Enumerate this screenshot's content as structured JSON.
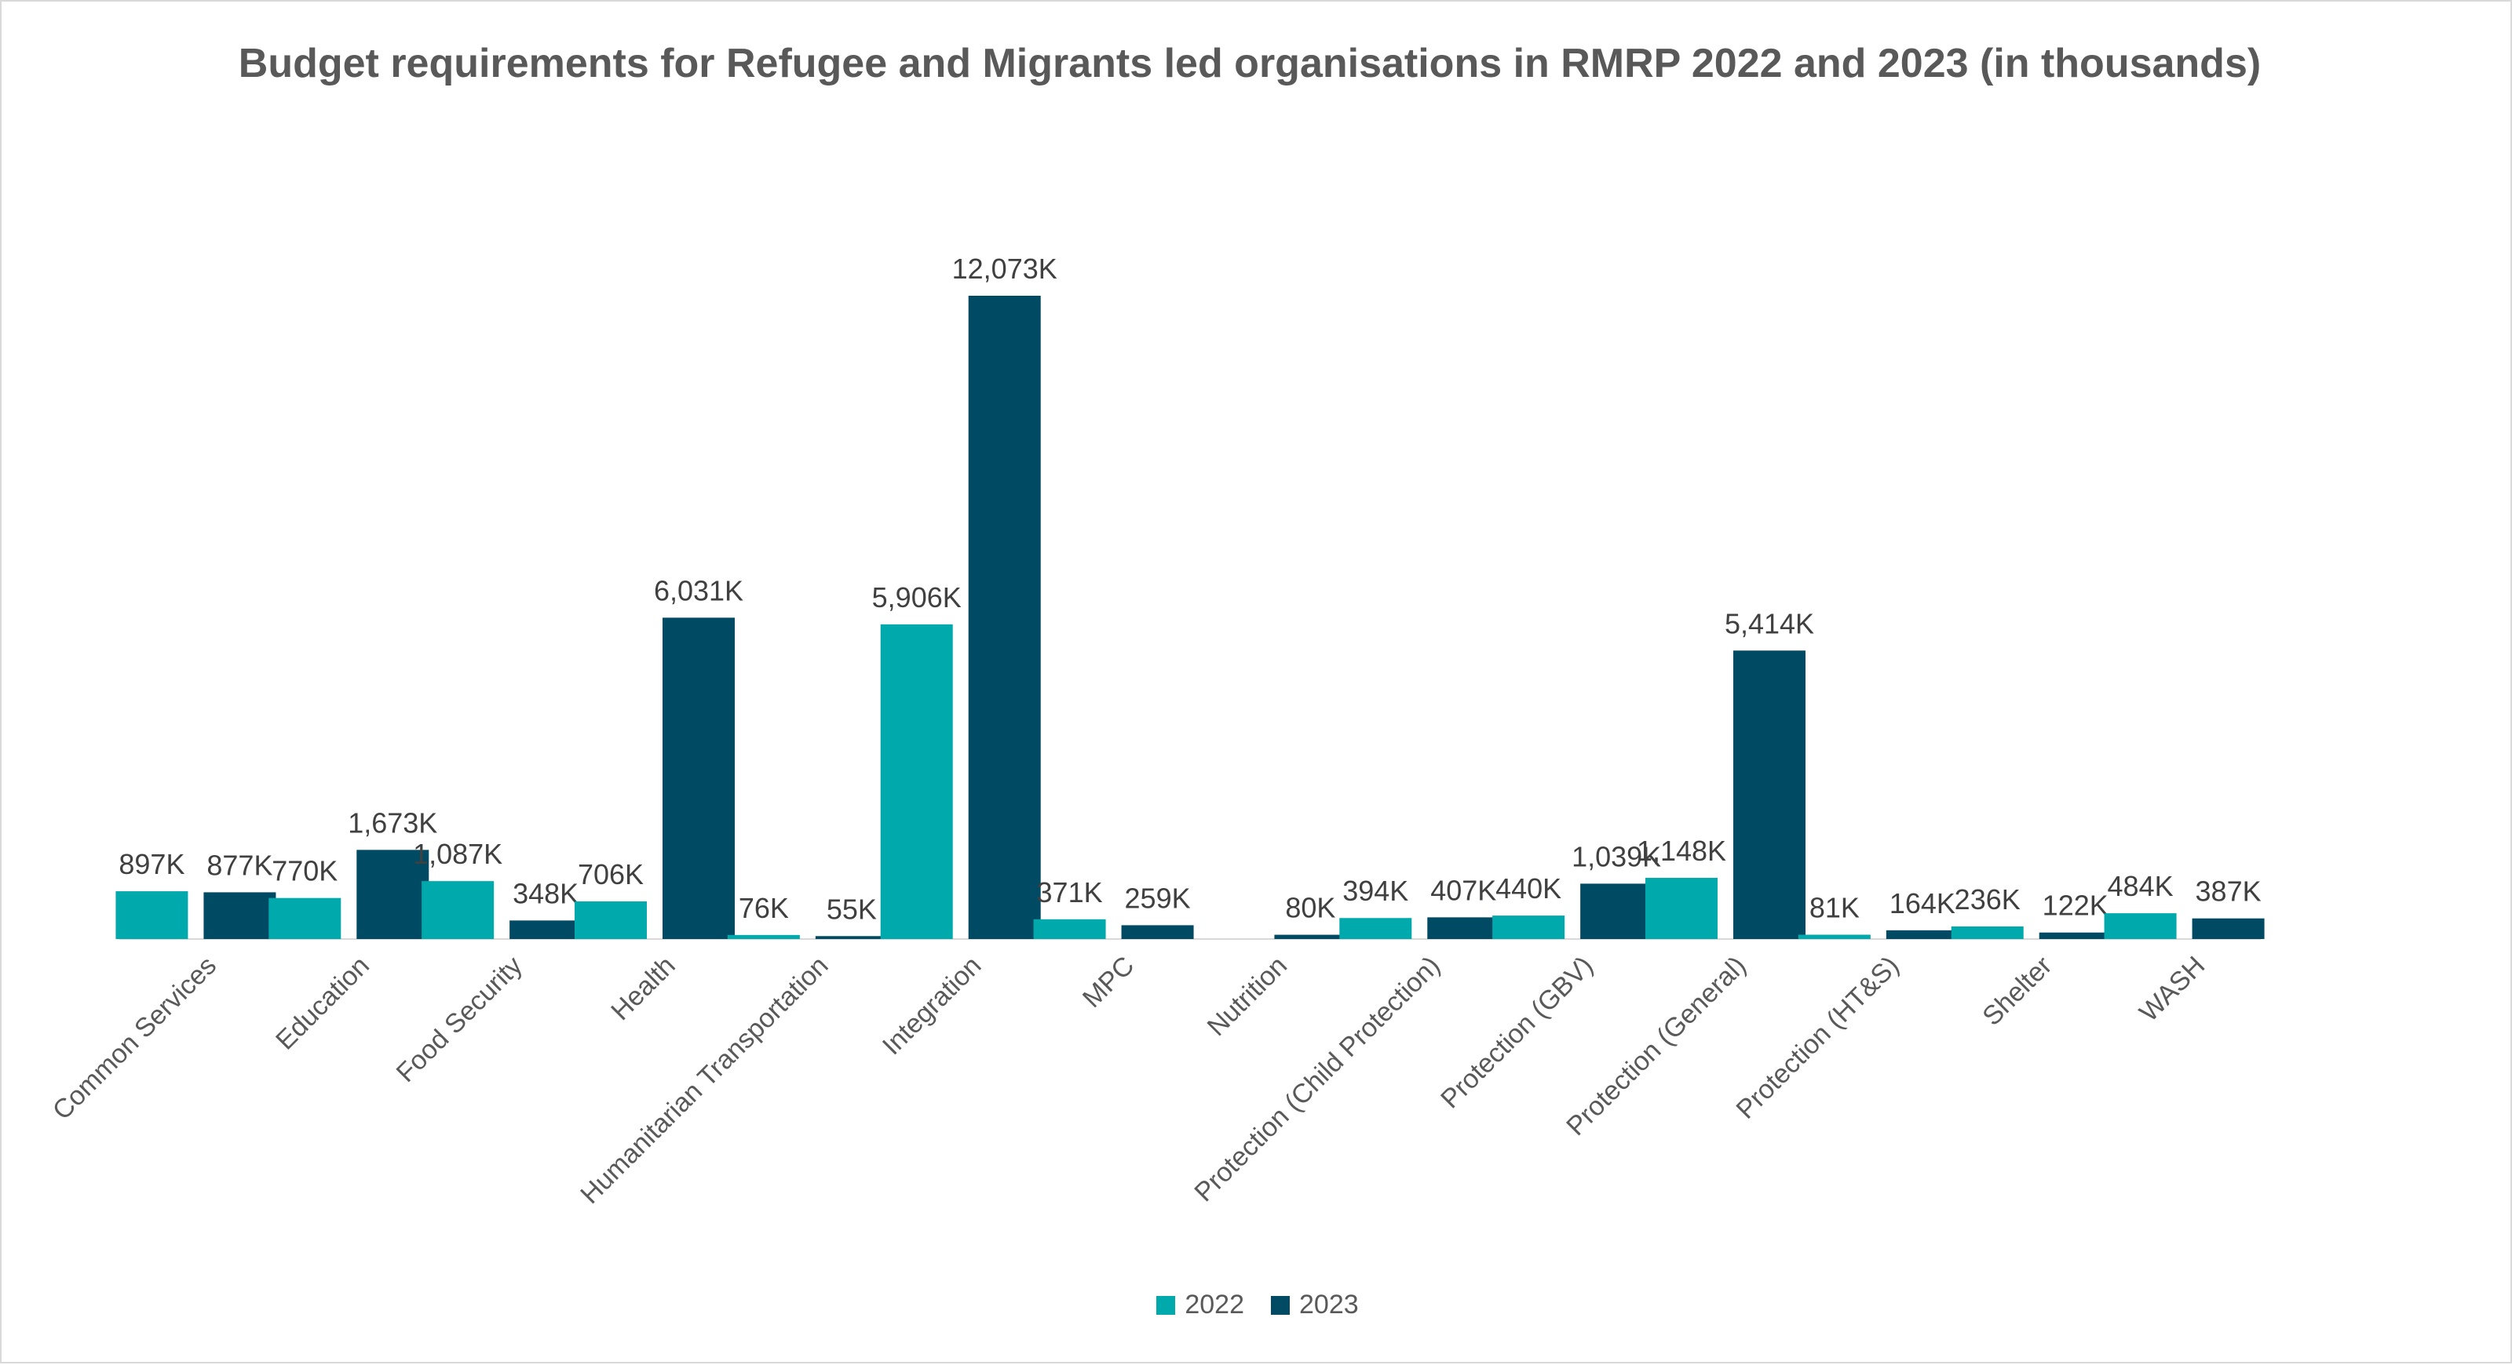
{
  "chart_data": {
    "type": "bar",
    "title": "Budget requirements for Refugee and Migrants led organisations in RMRP 2022 and 2023 (in thousands)",
    "categories": [
      "Common Services",
      "Education",
      "Food Security",
      "Health",
      "Humanitarian Transportation",
      "Integration",
      "MPC",
      "Nutrition",
      "Protection (Child Protection)",
      "Protection (GBV)",
      "Protection (General)",
      "Protection (HT&S)",
      "Shelter",
      "WASH"
    ],
    "series": [
      {
        "name": "2022",
        "color": "#00a9ac",
        "values": [
          897,
          770,
          1087,
          706,
          76,
          5906,
          371,
          null,
          394,
          440,
          1148,
          81,
          236,
          484
        ],
        "labels": [
          "897K",
          "770K",
          "1,087K",
          "706K",
          "76K",
          "5,906K",
          "371K",
          "",
          "394K",
          "440K",
          "1,148K",
          "81K",
          "236K",
          "484K"
        ]
      },
      {
        "name": "2023",
        "color": "#004a64",
        "values": [
          877,
          1673,
          348,
          6031,
          55,
          12073,
          259,
          80,
          407,
          1039,
          5414,
          164,
          122,
          387
        ],
        "labels": [
          "877K",
          "1,673K",
          "348K",
          "6,031K",
          "55K",
          "12,073K",
          "259K",
          "80K",
          "407K",
          "1,039K",
          "5,414K",
          "164K",
          "122K",
          "387K"
        ]
      }
    ],
    "ylim": [
      0,
      13000
    ],
    "grid": false,
    "legend_position": "bottom"
  }
}
